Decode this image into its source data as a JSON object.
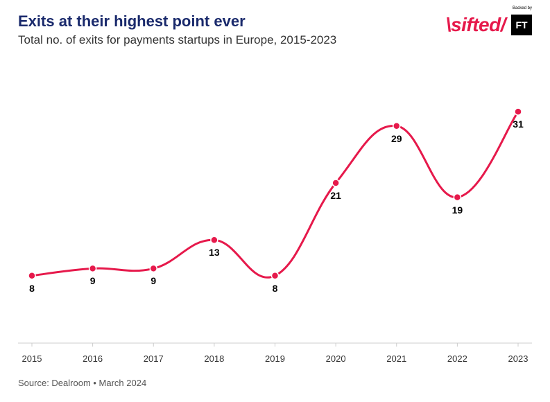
{
  "title": "Exits at their highest point ever",
  "title_color": "#1a2a6c",
  "title_fontsize": 22,
  "subtitle": "Total no. of exits for payments startups in Europe, 2015-2023",
  "subtitle_color": "#333333",
  "subtitle_fontsize": 17,
  "brand": {
    "sifted_text": "\\sifted/",
    "sifted_color": "#e6194b",
    "ft_label": "FT",
    "ft_bg": "#000000",
    "backed_by": "Backed by"
  },
  "chart": {
    "type": "line",
    "line_color": "#e6194b",
    "line_width": 3,
    "marker_color": "#e6194b",
    "marker_stroke": "#ffffff",
    "marker_radius": 5,
    "background_color": "#ffffff",
    "axis_line_color": "#cccccc",
    "label_fontsize": 14,
    "label_color": "#000000",
    "x_tick_fontsize": 13,
    "x_tick_color": "#333333",
    "ylim": [
      0,
      35
    ],
    "xlim": [
      2015,
      2023
    ],
    "x_values": [
      2015,
      2016,
      2017,
      2018,
      2019,
      2020,
      2021,
      2022,
      2023
    ],
    "y_values": [
      8,
      9,
      9,
      13,
      8,
      21,
      29,
      19,
      31
    ],
    "label_positions": [
      "below",
      "below",
      "below",
      "below",
      "below",
      "below",
      "below",
      "below",
      "below"
    ]
  },
  "source": "Source: Dealroom • March 2024",
  "source_color": "#555555",
  "source_fontsize": 13
}
